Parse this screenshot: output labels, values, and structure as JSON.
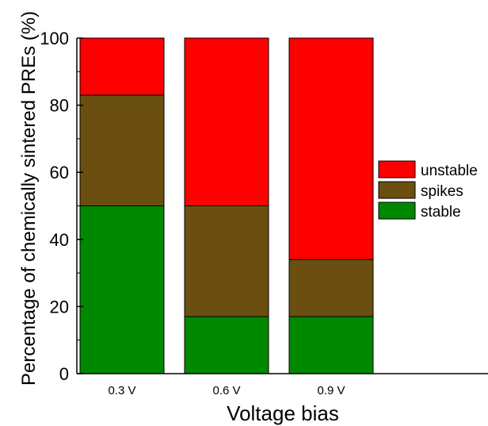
{
  "chart_data": {
    "type": "bar",
    "stacked": true,
    "title": "",
    "xlabel": "Voltage bias",
    "ylabel": "Percentage of chemically sintered PREs (%)",
    "categories": [
      "0.3 V",
      "0.6 V",
      "0.9 V"
    ],
    "ylim": [
      0,
      100
    ],
    "yticks": [
      "0",
      "20",
      "40",
      "60",
      "80",
      "100"
    ],
    "legend_position": "right",
    "series": [
      {
        "name": "stable",
        "color": "#008800",
        "values": [
          50,
          17,
          17
        ]
      },
      {
        "name": "spikes",
        "color": "#6b4f10",
        "values": [
          33,
          33,
          17
        ]
      },
      {
        "name": "unstable",
        "color": "#ff0000",
        "values": [
          17,
          50,
          66
        ]
      }
    ],
    "legend_order": [
      "unstable",
      "spikes",
      "stable"
    ]
  }
}
